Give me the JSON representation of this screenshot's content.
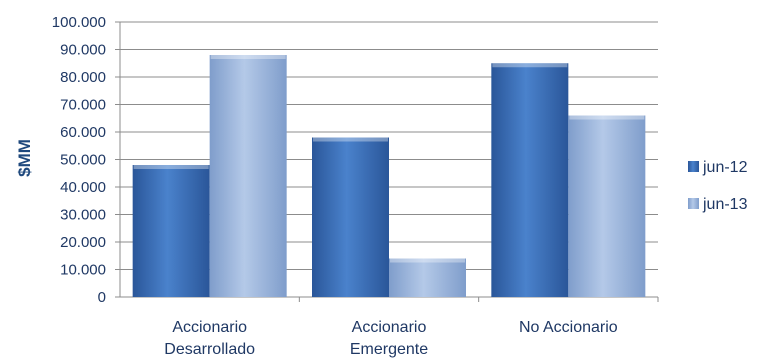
{
  "chart_data": {
    "type": "bar",
    "title": "",
    "xlabel": "",
    "ylabel": "$MM",
    "categories": [
      [
        "Accionario",
        "Desarrollado"
      ],
      [
        "Accionario",
        "Emergente"
      ],
      [
        "No Accionario"
      ]
    ],
    "series": [
      {
        "name": "jun-12",
        "values": [
          48000,
          58000,
          85000
        ],
        "color": "#3a6eb5"
      },
      {
        "name": "jun-13",
        "values": [
          88000,
          14000,
          66000
        ],
        "color": "#95b3d7"
      }
    ],
    "ylim": [
      0,
      100000
    ],
    "yticks": [
      0,
      10000,
      20000,
      30000,
      40000,
      50000,
      60000,
      70000,
      80000,
      90000,
      100000
    ],
    "ytick_labels": [
      "0",
      "10.000",
      "20.000",
      "30.000",
      "40.000",
      "50.000",
      "60.000",
      "70.000",
      "80.000",
      "90.000",
      "100.000"
    ],
    "grid": true,
    "legend_position": "right"
  }
}
